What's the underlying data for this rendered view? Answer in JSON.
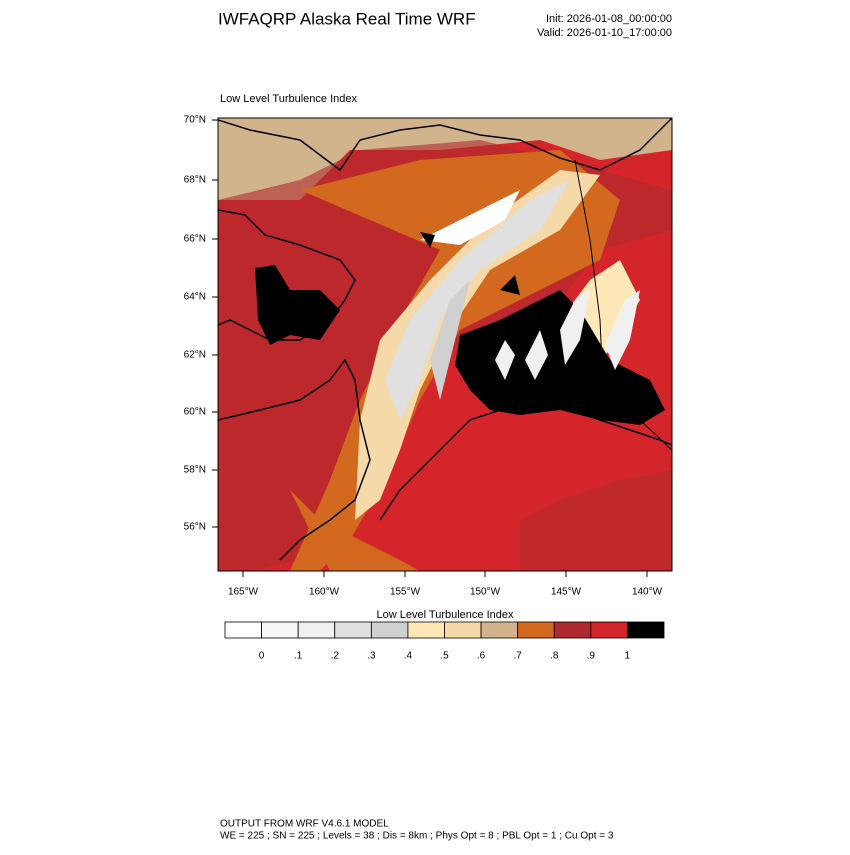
{
  "header": {
    "title": "IWFAQRP Alaska Real Time WRF",
    "init": "Init: 2026-01-08_00:00:00",
    "valid": "Valid: 2026-01-10_17:00:00"
  },
  "map": {
    "label": "Low Level Turbulence Index",
    "lat_labels": [
      "70°N",
      "68°N",
      "66°N",
      "64°N",
      "62°N",
      "60°N",
      "58°N",
      "56°N"
    ],
    "lon_labels": [
      "165°W",
      "160°W",
      "155°W",
      "150°W",
      "145°W",
      "140°W"
    ]
  },
  "colorbar": {
    "title": "Low Level Turbulence Index",
    "colors": [
      "#ffffff",
      "#f8f8f8",
      "#f0f0f0",
      "#e0e0e0",
      "#d0d0d0",
      "#ffe8b8",
      "#f5d9a8",
      "#d2b48c",
      "#d2691e",
      "#ae2a2e",
      "#d4262a",
      "#000000"
    ],
    "labels": [
      "0",
      ".1",
      ".2",
      ".3",
      ".4",
      ".5",
      ".6",
      ".7",
      ".8",
      ".9",
      "1"
    ]
  },
  "footer": {
    "line1": "OUTPUT FROM WRF V4.6.1 MODEL",
    "line2": "WE = 225 ; SN = 225 ; Levels = 38 ; Dis = 8km ; Phys Opt = 8 ; PBL Opt = 1 ; Cu Opt = 3"
  }
}
